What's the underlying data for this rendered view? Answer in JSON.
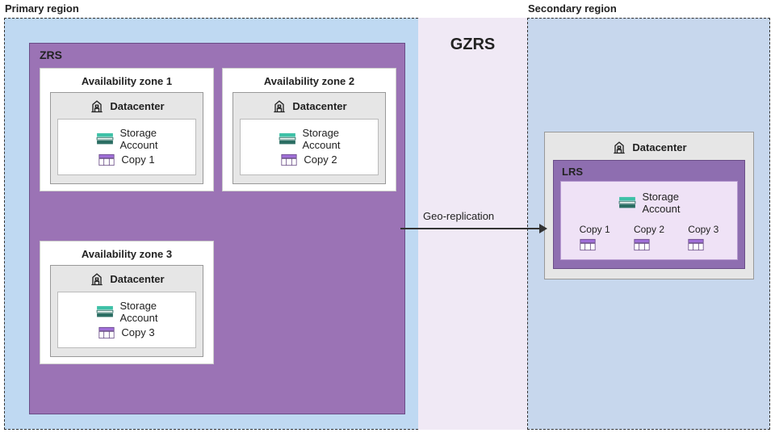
{
  "diagram": {
    "title_center": "GZRS",
    "geo_replication_label": "Geo-replication",
    "colors": {
      "primary_region_bg": "#bfd9f2",
      "secondary_region_bg": "#c7d7ed",
      "gap_bg": "#f0e9f5",
      "zrs_bg": "#9b73b5",
      "zrs_border": "#6a4d87",
      "lrs_outer_bg": "#8e6eb0",
      "lrs_inner_bg": "#efe2f6",
      "dc_bg": "#e6e6e6",
      "dc_border": "#999999",
      "storage_teal": "#3fc1a7",
      "storage_dark": "#2b6e63",
      "copy_purple": "#a06fd8",
      "copy_outline": "#6a4d87",
      "arrow": "#333333",
      "dash_border": "#333333"
    },
    "primary": {
      "region_label": "Primary region",
      "zrs_label": "ZRS",
      "zones": [
        {
          "title": "Availability zone 1",
          "datacenter": "Datacenter",
          "storage": "Storage\nAccount",
          "copy": "Copy 1"
        },
        {
          "title": "Availability zone 2",
          "datacenter": "Datacenter",
          "storage": "Storage\nAccount",
          "copy": "Copy 2"
        },
        {
          "title": "Availability zone 3",
          "datacenter": "Datacenter",
          "storage": "Storage\nAccount",
          "copy": "Copy 3"
        }
      ]
    },
    "secondary": {
      "region_label": "Secondary region",
      "datacenter": "Datacenter",
      "lrs_label": "LRS",
      "storage": "Storage\nAccount",
      "copies": [
        "Copy 1",
        "Copy 2",
        "Copy 3"
      ]
    }
  }
}
